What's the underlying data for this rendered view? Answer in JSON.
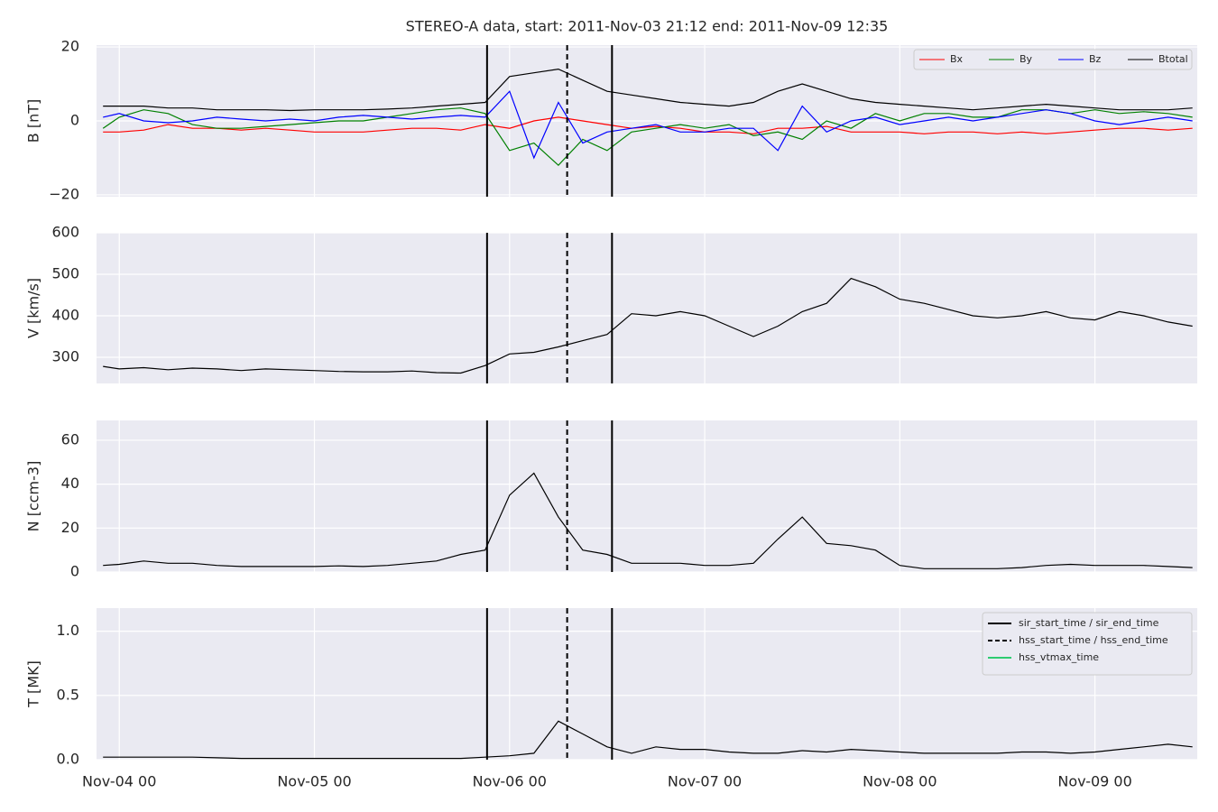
{
  "chart_data": [
    {
      "type": "line",
      "title": "STEREO-A data, start: 2011-Nov-03 21:12  end: 2011-Nov-09 12:35",
      "ylabel": "B [nT]",
      "x": [
        "Nov-03 22",
        "Nov-04 00",
        "Nov-04 03",
        "Nov-04 06",
        "Nov-04 09",
        "Nov-04 12",
        "Nov-04 15",
        "Nov-04 18",
        "Nov-04 21",
        "Nov-05 00",
        "Nov-05 03",
        "Nov-05 06",
        "Nov-05 09",
        "Nov-05 12",
        "Nov-05 15",
        "Nov-05 18",
        "Nov-05 21",
        "Nov-06 00",
        "Nov-06 03",
        "Nov-06 06",
        "Nov-06 09",
        "Nov-06 12",
        "Nov-06 15",
        "Nov-06 18",
        "Nov-06 21",
        "Nov-07 00",
        "Nov-07 03",
        "Nov-07 06",
        "Nov-07 09",
        "Nov-07 12",
        "Nov-07 15",
        "Nov-07 18",
        "Nov-07 21",
        "Nov-08 00",
        "Nov-08 03",
        "Nov-08 06",
        "Nov-08 09",
        "Nov-08 12",
        "Nov-08 15",
        "Nov-08 18",
        "Nov-08 21",
        "Nov-09 00",
        "Nov-09 03",
        "Nov-09 06",
        "Nov-09 09",
        "Nov-09 12"
      ],
      "series": [
        {
          "name": "Bx",
          "color": "#ff0000",
          "values": [
            -3,
            -3,
            -2.5,
            -1,
            -2,
            -2,
            -2.5,
            -2,
            -2.5,
            -3,
            -3,
            -3,
            -2.5,
            -2,
            -2,
            -2.5,
            -1,
            -2,
            0,
            1,
            0,
            -1,
            -2,
            -1.5,
            -2,
            -3,
            -3,
            -3.5,
            -2,
            -2,
            -1.5,
            -3,
            -3,
            -3,
            -3.5,
            -3,
            -3,
            -3.5,
            -3,
            -3.5,
            -3,
            -2.5,
            -2,
            -2,
            -2.5,
            -2
          ]
        },
        {
          "name": "By",
          "color": "#008000",
          "values": [
            -2,
            1,
            3,
            2,
            -1,
            -2,
            -2,
            -1.5,
            -1,
            -0.5,
            0,
            0,
            1,
            2,
            3,
            3.5,
            2,
            -8,
            -6,
            -12,
            -5,
            -8,
            -3,
            -2,
            -1,
            -2,
            -1,
            -4,
            -3,
            -5,
            0,
            -2,
            2,
            0,
            2,
            2,
            1,
            1,
            3,
            3,
            2,
            3,
            2,
            2.5,
            2,
            1
          ]
        },
        {
          "name": "Bz",
          "color": "#0000ff",
          "values": [
            1,
            2,
            0,
            -0.5,
            0,
            1,
            0.5,
            0,
            0.5,
            0,
            1,
            1.5,
            1,
            0.5,
            1,
            1.5,
            1,
            8,
            -10,
            5,
            -6,
            -3,
            -2,
            -1,
            -3,
            -3,
            -2,
            -2,
            -8,
            4,
            -3,
            0,
            1,
            -1,
            0,
            1,
            0,
            1,
            2,
            3,
            2,
            0,
            -1,
            0,
            1,
            0
          ]
        },
        {
          "name": "Btotal",
          "color": "#000000",
          "values": [
            4,
            4,
            4,
            3.5,
            3.5,
            3,
            3,
            3,
            2.8,
            3,
            3,
            3,
            3.2,
            3.5,
            4,
            4.5,
            5,
            12,
            13,
            14,
            11,
            8,
            7,
            6,
            5,
            4.5,
            4,
            5,
            8,
            10,
            8,
            6,
            5,
            4.5,
            4,
            3.5,
            3,
            3.5,
            4,
            4.5,
            4,
            3.5,
            3,
            3,
            3,
            3.5
          ]
        }
      ],
      "xlim": [
        "Nov-03 21:12",
        "Nov-09 12:35"
      ],
      "xticks": [
        "Nov-04 00",
        "Nov-05 00",
        "Nov-06 00",
        "Nov-07 00",
        "Nov-08 00",
        "Nov-09 00"
      ],
      "ylim": [
        -20.5,
        20.5
      ],
      "yticks": [
        {
          "value": -20,
          "label": "−20"
        },
        0,
        20
      ],
      "grid": true,
      "legend": "upper right",
      "events": [
        {
          "style": "solid",
          "x": [
            "Nov-05 21:14",
            "Nov-06 12:36"
          ]
        },
        {
          "style": "dashed",
          "x": [
            "Nov-06 07:05"
          ]
        }
      ]
    },
    {
      "type": "line",
      "ylabel": "V [km/s]",
      "color": "#000000",
      "x": [
        "Nov-03 22",
        "Nov-04 00",
        "Nov-04 03",
        "Nov-04 06",
        "Nov-04 09",
        "Nov-04 12",
        "Nov-04 15",
        "Nov-04 18",
        "Nov-04 21",
        "Nov-05 00",
        "Nov-05 03",
        "Nov-05 06",
        "Nov-05 09",
        "Nov-05 12",
        "Nov-05 15",
        "Nov-05 18",
        "Nov-05 21",
        "Nov-06 00",
        "Nov-06 03",
        "Nov-06 06",
        "Nov-06 09",
        "Nov-06 12",
        "Nov-06 15",
        "Nov-06 18",
        "Nov-06 21",
        "Nov-07 00",
        "Nov-07 03",
        "Nov-07 06",
        "Nov-07 09",
        "Nov-07 12",
        "Nov-07 15",
        "Nov-07 18",
        "Nov-07 21",
        "Nov-08 00",
        "Nov-08 03",
        "Nov-08 06",
        "Nov-08 09",
        "Nov-08 12",
        "Nov-08 15",
        "Nov-08 18",
        "Nov-08 21",
        "Nov-09 00",
        "Nov-09 03",
        "Nov-09 06",
        "Nov-09 09",
        "Nov-09 12"
      ],
      "values": [
        278,
        272,
        275,
        270,
        274,
        272,
        268,
        272,
        270,
        268,
        266,
        265,
        265,
        267,
        263,
        262,
        280,
        308,
        312,
        325,
        340,
        355,
        405,
        400,
        410,
        400,
        375,
        350,
        375,
        410,
        430,
        490,
        470,
        440,
        430,
        415,
        400,
        395,
        400,
        410,
        395,
        390,
        410,
        400,
        385,
        375
      ],
      "xlim": [
        "Nov-03 21:12",
        "Nov-09 12:35"
      ],
      "xticks": [
        "Nov-04 00",
        "Nov-05 00",
        "Nov-06 00",
        "Nov-07 00",
        "Nov-08 00",
        "Nov-09 00"
      ],
      "ylim": [
        237,
        600
      ],
      "yticks": [
        300,
        400,
        500,
        600
      ],
      "grid": true,
      "events": [
        {
          "style": "solid",
          "x": [
            "Nov-05 21:14",
            "Nov-06 12:36"
          ]
        },
        {
          "style": "dashed",
          "x": [
            "Nov-06 07:05"
          ]
        }
      ]
    },
    {
      "type": "line",
      "ylabel": "N [ccm-3]",
      "color": "#000000",
      "x": [
        "Nov-03 22",
        "Nov-04 00",
        "Nov-04 03",
        "Nov-04 06",
        "Nov-04 09",
        "Nov-04 12",
        "Nov-04 15",
        "Nov-04 18",
        "Nov-04 21",
        "Nov-05 00",
        "Nov-05 03",
        "Nov-05 06",
        "Nov-05 09",
        "Nov-05 12",
        "Nov-05 15",
        "Nov-05 18",
        "Nov-05 21",
        "Nov-06 00",
        "Nov-06 03",
        "Nov-06 06",
        "Nov-06 09",
        "Nov-06 12",
        "Nov-06 15",
        "Nov-06 18",
        "Nov-06 21",
        "Nov-07 00",
        "Nov-07 03",
        "Nov-07 06",
        "Nov-07 09",
        "Nov-07 12",
        "Nov-07 15",
        "Nov-07 18",
        "Nov-07 21",
        "Nov-08 00",
        "Nov-08 03",
        "Nov-08 06",
        "Nov-08 09",
        "Nov-08 12",
        "Nov-08 15",
        "Nov-08 18",
        "Nov-08 21",
        "Nov-09 00",
        "Nov-09 03",
        "Nov-09 06",
        "Nov-09 09",
        "Nov-09 12"
      ],
      "values": [
        3,
        3.5,
        5,
        4,
        4,
        3,
        2.5,
        2.5,
        2.5,
        2.5,
        2.8,
        2.5,
        3,
        4,
        5,
        8,
        10,
        35,
        45,
        25,
        10,
        8,
        4,
        4,
        4,
        3,
        3,
        4,
        15,
        25,
        13,
        12,
        10,
        3,
        1.5,
        1.5,
        1.5,
        1.5,
        2,
        3,
        3.5,
        3,
        3,
        3,
        2.5,
        2
      ],
      "xlim": [
        "Nov-03 21:12",
        "Nov-09 12:35"
      ],
      "xticks": [
        "Nov-04 00",
        "Nov-05 00",
        "Nov-06 00",
        "Nov-07 00",
        "Nov-08 00",
        "Nov-09 00"
      ],
      "ylim": [
        0,
        69
      ],
      "yticks": [
        0,
        20,
        40,
        60
      ],
      "grid": true,
      "events": [
        {
          "style": "solid",
          "x": [
            "Nov-05 21:14",
            "Nov-06 12:36"
          ]
        },
        {
          "style": "dashed",
          "x": [
            "Nov-06 07:05"
          ]
        }
      ]
    },
    {
      "type": "line",
      "ylabel": "T [MK]",
      "color": "#000000",
      "x": [
        "Nov-03 22",
        "Nov-04 00",
        "Nov-04 03",
        "Nov-04 06",
        "Nov-04 09",
        "Nov-04 12",
        "Nov-04 15",
        "Nov-04 18",
        "Nov-04 21",
        "Nov-05 00",
        "Nov-05 03",
        "Nov-05 06",
        "Nov-05 09",
        "Nov-05 12",
        "Nov-05 15",
        "Nov-05 18",
        "Nov-05 21",
        "Nov-06 00",
        "Nov-06 03",
        "Nov-06 06",
        "Nov-06 09",
        "Nov-06 12",
        "Nov-06 15",
        "Nov-06 18",
        "Nov-06 21",
        "Nov-07 00",
        "Nov-07 03",
        "Nov-07 06",
        "Nov-07 09",
        "Nov-07 12",
        "Nov-07 15",
        "Nov-07 18",
        "Nov-07 21",
        "Nov-08 00",
        "Nov-08 03",
        "Nov-08 06",
        "Nov-08 09",
        "Nov-08 12",
        "Nov-08 15",
        "Nov-08 18",
        "Nov-08 21",
        "Nov-09 00",
        "Nov-09 03",
        "Nov-09 06",
        "Nov-09 09",
        "Nov-09 12"
      ],
      "values": [
        0.02,
        0.02,
        0.02,
        0.02,
        0.02,
        0.015,
        0.01,
        0.01,
        0.01,
        0.01,
        0.01,
        0.01,
        0.01,
        0.01,
        0.01,
        0.01,
        0.02,
        0.03,
        0.05,
        0.3,
        0.2,
        0.1,
        0.05,
        0.1,
        0.08,
        0.08,
        0.06,
        0.05,
        0.05,
        0.07,
        0.06,
        0.08,
        0.07,
        0.06,
        0.05,
        0.05,
        0.05,
        0.05,
        0.06,
        0.06,
        0.05,
        0.06,
        0.08,
        0.1,
        0.12,
        0.1
      ],
      "xlim": [
        "Nov-03 21:12",
        "Nov-09 12:35"
      ],
      "xticks": [
        "Nov-04 00",
        "Nov-05 00",
        "Nov-06 00",
        "Nov-07 00",
        "Nov-08 00",
        "Nov-09 00"
      ],
      "ylim": [
        0,
        1.18
      ],
      "yticks": [
        {
          "value": 0,
          "label": "0.0"
        },
        0.5,
        {
          "value": 1,
          "label": "1.0"
        }
      ],
      "grid": true,
      "legend": "upper right",
      "events": [
        {
          "name": "sir_start_time / sir_end_time",
          "style": "solid",
          "color": "#000000",
          "x": [
            "Nov-05 21:14",
            "Nov-06 12:36"
          ]
        },
        {
          "name": "hss_start_time / hss_end_time",
          "style": "dashed",
          "color": "#000000",
          "x": [
            "Nov-06 07:05"
          ]
        },
        {
          "name": "hss_vtmax_time",
          "style": "solid",
          "color": "#2ecc71",
          "x": []
        }
      ]
    }
  ]
}
